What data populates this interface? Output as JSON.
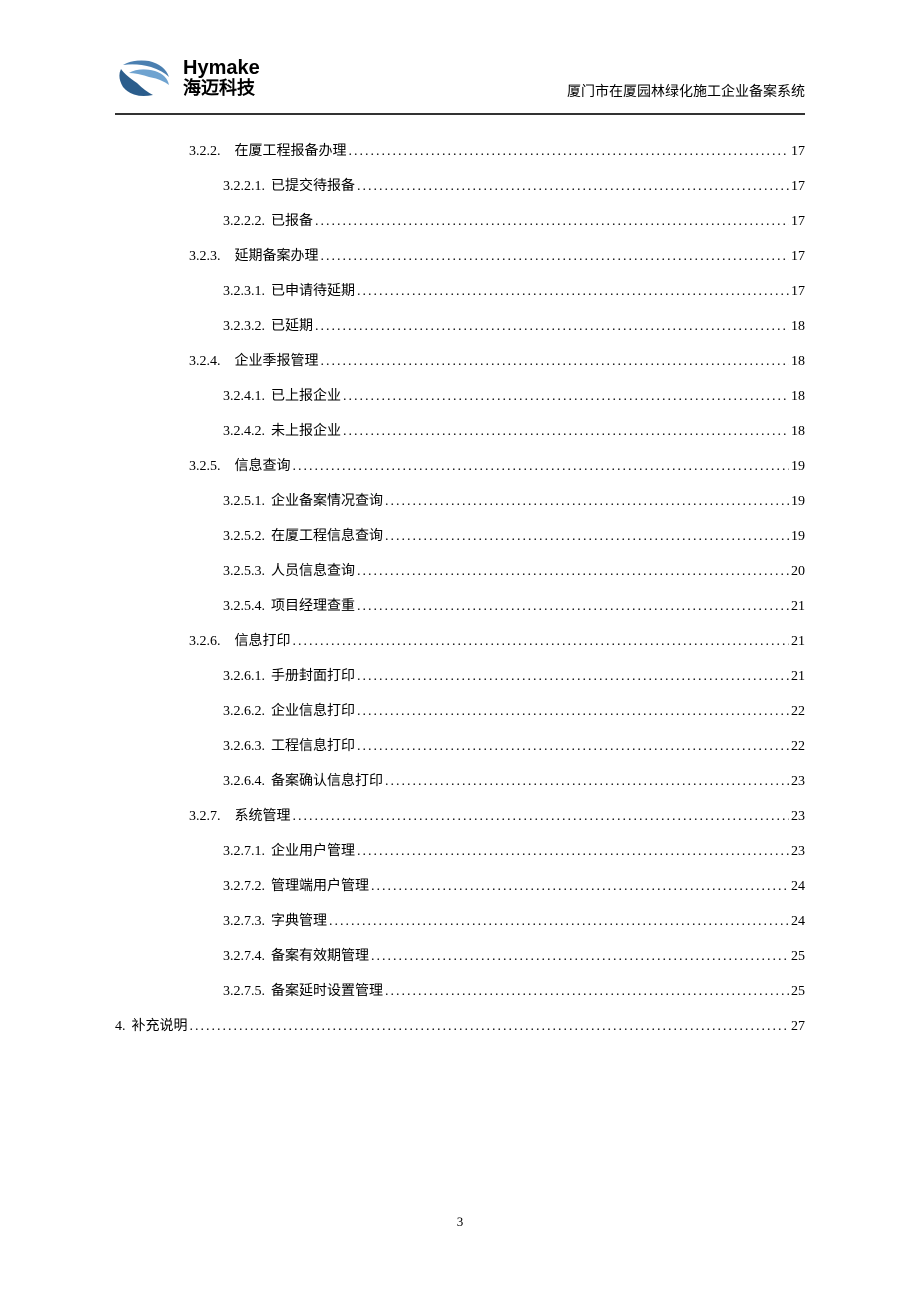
{
  "header": {
    "logo_en": "Hymake",
    "logo_cn": "海迈科技",
    "doc_title": "厦门市在厦园林绿化施工企业备案系统"
  },
  "toc": [
    {
      "level": 1,
      "num": "3.2.2.",
      "label": "在厦工程报备办理",
      "page": "17"
    },
    {
      "level": 2,
      "num": "3.2.2.1.",
      "label": "已提交待报备",
      "page": "17"
    },
    {
      "level": 2,
      "num": "3.2.2.2.",
      "label": "已报备",
      "page": "17"
    },
    {
      "level": 1,
      "num": "3.2.3.",
      "label": "延期备案办理",
      "page": "17"
    },
    {
      "level": 2,
      "num": "3.2.3.1.",
      "label": "已申请待延期",
      "page": "17"
    },
    {
      "level": 2,
      "num": "3.2.3.2.",
      "label": "已延期",
      "page": "18"
    },
    {
      "level": 1,
      "num": "3.2.4.",
      "label": "企业季报管理",
      "page": "18"
    },
    {
      "level": 2,
      "num": "3.2.4.1.",
      "label": "已上报企业",
      "page": "18"
    },
    {
      "level": 2,
      "num": "3.2.4.2.",
      "label": "未上报企业",
      "page": "18"
    },
    {
      "level": 1,
      "num": "3.2.5.",
      "label": "信息查询",
      "page": "19"
    },
    {
      "level": 2,
      "num": "3.2.5.1.",
      "label": "企业备案情况查询",
      "page": "19"
    },
    {
      "level": 2,
      "num": "3.2.5.2.",
      "label": "在厦工程信息查询",
      "page": "19"
    },
    {
      "level": 2,
      "num": "3.2.5.3.",
      "label": "人员信息查询",
      "page": "20"
    },
    {
      "level": 2,
      "num": "3.2.5.4.",
      "label": "项目经理查重",
      "page": "21"
    },
    {
      "level": 1,
      "num": "3.2.6.",
      "label": "信息打印",
      "page": "21"
    },
    {
      "level": 2,
      "num": "3.2.6.1.",
      "label": "手册封面打印",
      "page": "21"
    },
    {
      "level": 2,
      "num": "3.2.6.2.",
      "label": "企业信息打印",
      "page": "22"
    },
    {
      "level": 2,
      "num": "3.2.6.3.",
      "label": "工程信息打印",
      "page": "22"
    },
    {
      "level": 2,
      "num": "3.2.6.4.",
      "label": "备案确认信息打印",
      "page": "23"
    },
    {
      "level": 1,
      "num": "3.2.7.",
      "label": "系统管理",
      "page": "23"
    },
    {
      "level": 2,
      "num": "3.2.7.1.",
      "label": "企业用户管理",
      "page": "23"
    },
    {
      "level": 2,
      "num": "3.2.7.2.",
      "label": "管理端用户管理",
      "page": "24"
    },
    {
      "level": 2,
      "num": "3.2.7.3.",
      "label": "字典管理",
      "page": "24"
    },
    {
      "level": 2,
      "num": "3.2.7.4.",
      "label": "备案有效期管理",
      "page": "25"
    },
    {
      "level": 2,
      "num": "3.2.7.5.",
      "label": "备案延时设置管理",
      "page": "25"
    },
    {
      "level": 0,
      "num": "4.",
      "label": "补充说明",
      "page": "27"
    }
  ],
  "footer": {
    "page_number": "3"
  },
  "style": {
    "page_bg": "#ffffff",
    "text_color": "#000000",
    "rule_color": "#333333",
    "font_size_body": 14,
    "font_size_header": 14,
    "indent_lvl0": 0,
    "indent_lvl1": 74,
    "indent_lvl2": 108,
    "row_spacing": 21
  }
}
